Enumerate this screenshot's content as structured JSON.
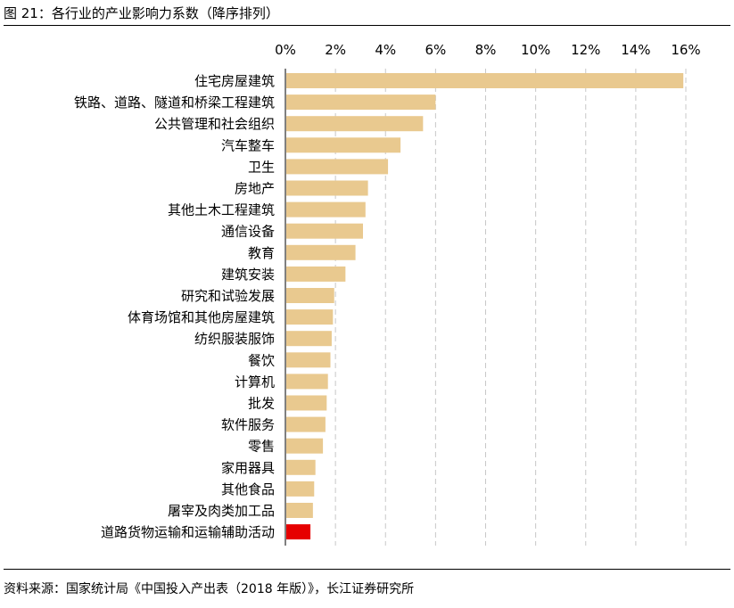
{
  "figure": {
    "title": "图 21：各行业的产业影响力系数（降序排列）",
    "source": "资料来源：国家统计局《中国投入产出表（2018 年版）》，长江证券研究所"
  },
  "colors": {
    "bar": "#E9C98F",
    "highlight": "#E60000",
    "grid": "#C8C8C8",
    "axis": "#000000"
  },
  "chart_data": {
    "type": "bar",
    "orientation": "horizontal",
    "xaxis_position": "top",
    "xlim": [
      0,
      16
    ],
    "xticks": [
      0,
      2,
      4,
      6,
      8,
      10,
      12,
      14,
      16
    ],
    "tick_labels": [
      "0%",
      "2%",
      "4%",
      "6%",
      "8%",
      "10%",
      "12%",
      "14%",
      "16%"
    ],
    "value_unit": "%",
    "grid": "vertical dashed",
    "categories": [
      "住宅房屋建筑",
      "铁路、道路、隧道和桥梁工程建筑",
      "公共管理和社会组织",
      "汽车整车",
      "卫生",
      "房地产",
      "其他土木工程建筑",
      "通信设备",
      "教育",
      "建筑安装",
      "研究和试验发展",
      "体育场馆和其他房屋建筑",
      "纺织服装服饰",
      "餐饮",
      "计算机",
      "批发",
      "软件服务",
      "零售",
      "家用器具",
      "其他食品",
      "屠宰及肉类加工品",
      "道路货物运输和运输辅助活动"
    ],
    "values": [
      15.9,
      6.0,
      5.5,
      4.6,
      4.1,
      3.3,
      3.2,
      3.1,
      2.8,
      2.4,
      1.95,
      1.9,
      1.85,
      1.8,
      1.7,
      1.65,
      1.6,
      1.5,
      1.2,
      1.15,
      1.1,
      1.0
    ],
    "highlight_index": 21
  }
}
